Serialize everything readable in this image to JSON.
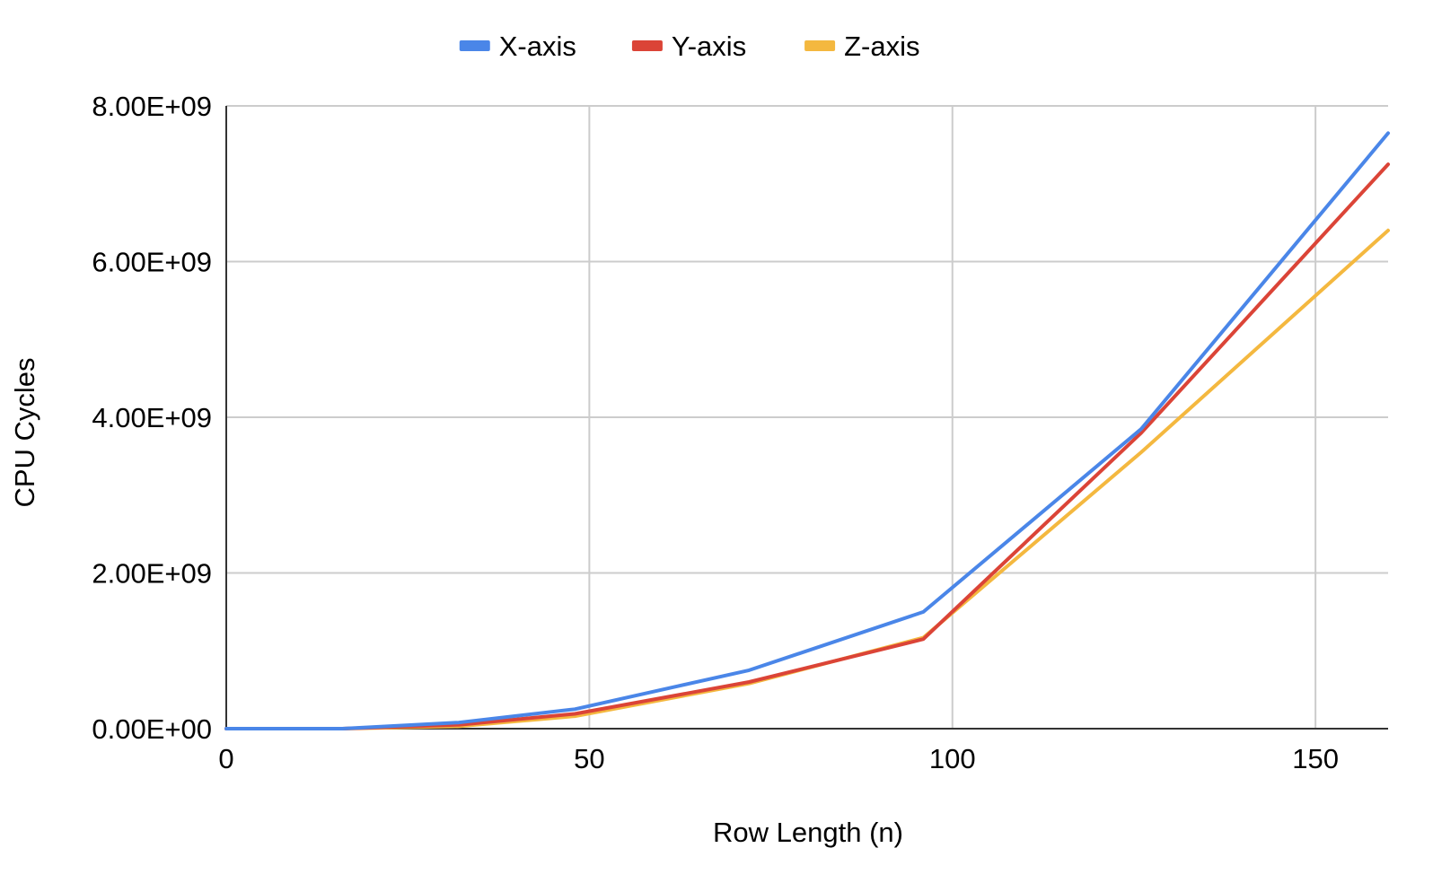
{
  "chart_data": {
    "type": "line",
    "title": "",
    "xlabel": "Row Length (n)",
    "ylabel": "CPU Cycles",
    "xlim": [
      0,
      160
    ],
    "ylim": [
      0,
      8000000000
    ],
    "x_ticks": [
      0,
      50,
      100,
      150
    ],
    "x_tick_labels": [
      "0",
      "50",
      "100",
      "150"
    ],
    "y_ticks": [
      0,
      2000000000,
      4000000000,
      6000000000,
      8000000000
    ],
    "y_tick_labels": [
      "0.00E+00",
      "2.00E+09",
      "4.00E+09",
      "6.00E+09",
      "8.00E+09"
    ],
    "grid": true,
    "legend_position": "top",
    "series": [
      {
        "name": "X-axis",
        "color": "#4a86e8",
        "points": [
          [
            0,
            0
          ],
          [
            16,
            0
          ],
          [
            32,
            78000000
          ],
          [
            48,
            250000000
          ],
          [
            72,
            750000000
          ],
          [
            96,
            1500000000
          ],
          [
            126,
            3850000000
          ],
          [
            160,
            7650000000
          ]
        ]
      },
      {
        "name": "Y-axis",
        "color": "#db4437",
        "points": [
          [
            0,
            0
          ],
          [
            16,
            0
          ],
          [
            32,
            50000000
          ],
          [
            48,
            190000000
          ],
          [
            72,
            600000000
          ],
          [
            96,
            1150000000
          ],
          [
            126,
            3800000000
          ],
          [
            160,
            7250000000
          ]
        ]
      },
      {
        "name": "Z-axis",
        "color": "#f4b83f",
        "points": [
          [
            0,
            0
          ],
          [
            16,
            0
          ],
          [
            32,
            30000000
          ],
          [
            48,
            160000000
          ],
          [
            72,
            580000000
          ],
          [
            96,
            1170000000
          ],
          [
            126,
            3550000000
          ],
          [
            160,
            6400000000
          ]
        ]
      }
    ]
  }
}
